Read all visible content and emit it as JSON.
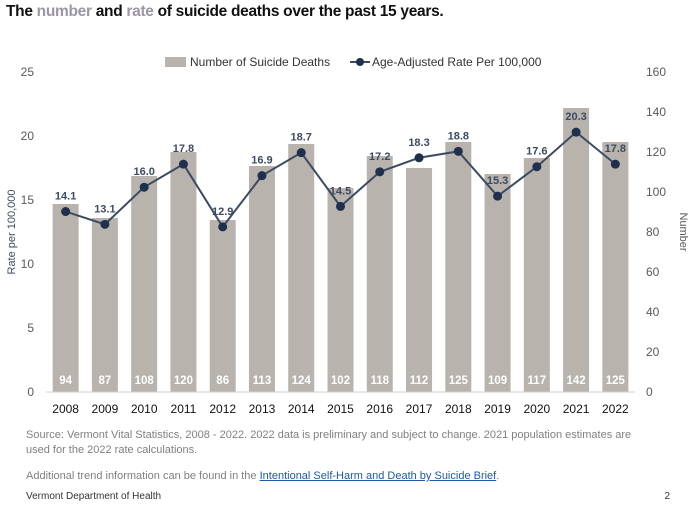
{
  "title": {
    "pre": "The ",
    "hl1": "number",
    "mid": " and ",
    "hl2": "rate",
    "post": " of suicide deaths over the past 15 years."
  },
  "colors": {
    "bar": "#b8b3ad",
    "line": "#3d4b61",
    "marker": "#1f2f4e",
    "label": "#3d4b61",
    "highlight": "#9b96a6"
  },
  "chart_data": {
    "type": "bar+line",
    "categories": [
      "2008",
      "2009",
      "2010",
      "2011",
      "2012",
      "2013",
      "2014",
      "2015",
      "2016",
      "2017",
      "2018",
      "2019",
      "2020",
      "2021",
      "2022"
    ],
    "series": [
      {
        "name": "Number of Suicide Deaths",
        "type": "bar",
        "axis": "right",
        "values": [
          94,
          87,
          108,
          120,
          86,
          113,
          124,
          102,
          118,
          112,
          125,
          109,
          117,
          142,
          125
        ]
      },
      {
        "name": "Age-Adjusted Rate Per 100,000",
        "type": "line",
        "axis": "left",
        "values": [
          14.1,
          13.1,
          16.0,
          17.8,
          12.9,
          16.9,
          18.7,
          14.5,
          17.2,
          18.3,
          18.8,
          15.3,
          17.6,
          20.3,
          17.8
        ],
        "labels": [
          "14.1",
          "13.1",
          "16.0",
          "17.8",
          "12.9",
          "16.9",
          "18.7",
          "14.5",
          "17.2",
          "18.3",
          "18.8",
          "15.3",
          "17.6",
          "20.3",
          "17.8"
        ]
      }
    ],
    "ylabel_left": "Rate per 100,000",
    "ylabel_right": "Number",
    "ylim_left": [
      0,
      25
    ],
    "ylim_right": [
      0,
      160
    ],
    "yticks_left": [
      "0",
      "5",
      "10",
      "15",
      "20",
      "25"
    ],
    "yticks_right": [
      "0",
      "20",
      "40",
      "60",
      "80",
      "100",
      "120",
      "140",
      "160"
    ],
    "grid": false,
    "legend_position": "top"
  },
  "source_text": "Source: Vermont Vital Statistics, 2008 - 2022. 2022 data is preliminary and subject to change. 2021 population estimates are used for the 2022 rate calculations.",
  "trend": {
    "pre": "Additional trend information can be found in the ",
    "link": "Intentional Self-Harm and Death by Suicide Brief",
    "post": "."
  },
  "footer": "Vermont Department of Health",
  "page_number": "2"
}
